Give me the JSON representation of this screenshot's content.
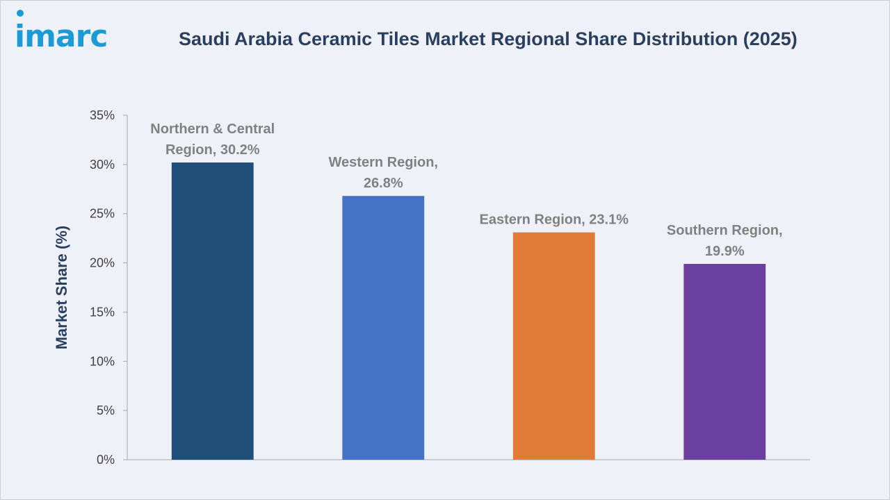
{
  "brand": {
    "logo_text": "imarc",
    "logo_color": "#1b9ad6"
  },
  "chart_data": {
    "type": "bar",
    "title": "Saudi Arabia Ceramic Tiles Market Regional Share Distribution (2025)",
    "xlabel": "",
    "ylabel": "Market Share (%)",
    "ylim": [
      0,
      35
    ],
    "yticks": [
      0,
      5,
      10,
      15,
      20,
      25,
      30,
      35
    ],
    "ytick_labels": [
      "0%",
      "5%",
      "10%",
      "15%",
      "20%",
      "25%",
      "30%",
      "35%"
    ],
    "grid": false,
    "legend": "none",
    "categories": [
      "Northern & Central Region",
      "Western Region",
      "Eastern Region",
      "Southern Region"
    ],
    "values": [
      30.2,
      26.8,
      23.1,
      19.9
    ],
    "colors": [
      "#1f4e79",
      "#4472c4",
      "#e07b39",
      "#6b3fa0"
    ],
    "data_labels": [
      [
        "Northern & Central",
        "Region, 30.2%"
      ],
      [
        "Western Region,",
        "26.8%"
      ],
      [
        "Eastern Region, 23.1%"
      ],
      [
        "Southern Region,",
        "19.9%"
      ]
    ]
  }
}
